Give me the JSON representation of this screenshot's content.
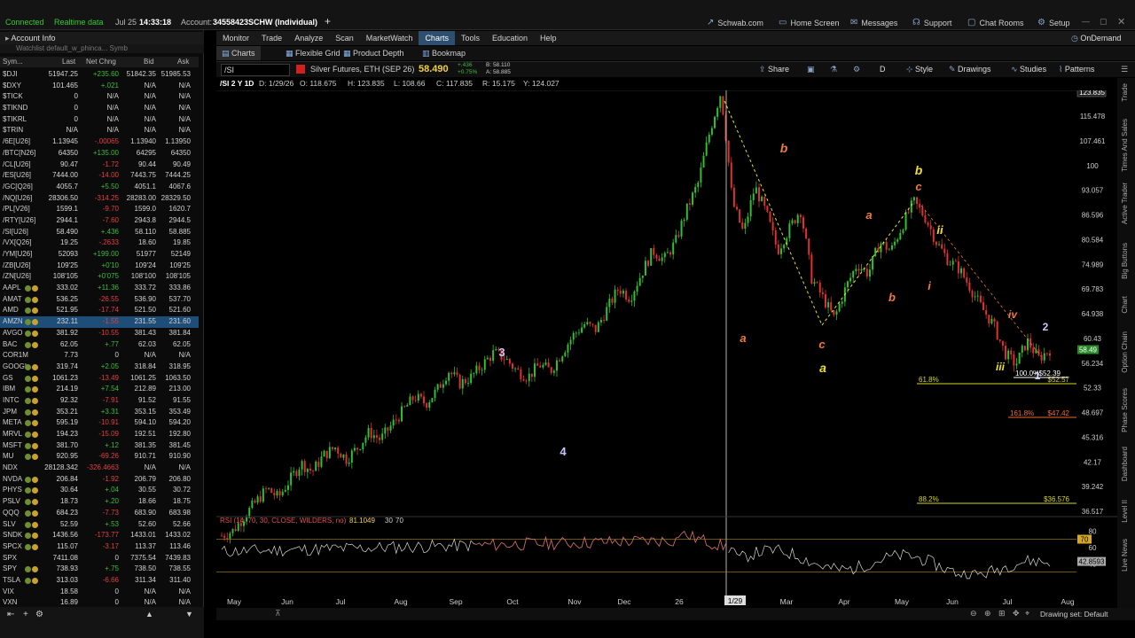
{
  "status": {
    "connected": "Connected",
    "realtime": "Realtime data",
    "date": "Jul 25",
    "time": "14:33:18",
    "account_label": "Account:",
    "account": "34558423SCHW (Individual)"
  },
  "toplinks": [
    "Schwab.com",
    "Home Screen",
    "Messages",
    "Support",
    "Chat Rooms",
    "Setup"
  ],
  "left": {
    "account_info": "Account Info",
    "watchlist_hint": "Watchlist   default_w_phinca...   Symb",
    "cols": [
      "Sym...",
      "Last",
      "Net Chng",
      "Bid",
      "Ask"
    ]
  },
  "watchlist": [
    {
      "sym": "$DJI",
      "last": "51947.25",
      "chg": "+235.60",
      "bid": "51842.35",
      "ask": "51985.53",
      "dir": "pos"
    },
    {
      "sym": "$DXY",
      "last": "101.465",
      "chg": "+.021",
      "bid": "N/A",
      "ask": "N/A",
      "dir": "pos"
    },
    {
      "sym": "$TICK",
      "last": "0",
      "chg": "N/A",
      "bid": "N/A",
      "ask": "N/A",
      "dir": "neu"
    },
    {
      "sym": "$TIKND",
      "last": "0",
      "chg": "N/A",
      "bid": "N/A",
      "ask": "N/A",
      "dir": "neu"
    },
    {
      "sym": "$TIKRL",
      "last": "0",
      "chg": "N/A",
      "bid": "N/A",
      "ask": "N/A",
      "dir": "neu"
    },
    {
      "sym": "$TRIN",
      "last": "N/A",
      "chg": "N/A",
      "bid": "N/A",
      "ask": "N/A",
      "dir": "neu"
    },
    {
      "sym": "/6E[U26]",
      "last": "1.13945",
      "chg": "-.00065",
      "bid": "1.13940",
      "ask": "1.13950",
      "dir": "neg"
    },
    {
      "sym": "/BTC[N26]",
      "last": "64350",
      "chg": "+135.00",
      "bid": "64295",
      "ask": "64350",
      "dir": "pos"
    },
    {
      "sym": "/CL[U26]",
      "last": "90.47",
      "chg": "-1.72",
      "bid": "90.44",
      "ask": "90.49",
      "dir": "neg"
    },
    {
      "sym": "/ES[U26]",
      "last": "7444.00",
      "chg": "-14.00",
      "bid": "7443.75",
      "ask": "7444.25",
      "dir": "neg"
    },
    {
      "sym": "/GC[Q26]",
      "last": "4055.7",
      "chg": "+5.50",
      "bid": "4051.1",
      "ask": "4067.6",
      "dir": "pos"
    },
    {
      "sym": "/NQ[U26]",
      "last": "28306.50",
      "chg": "-314.25",
      "bid": "28283.00",
      "ask": "28329.50",
      "dir": "neg"
    },
    {
      "sym": "/PL[V26]",
      "last": "1599.1",
      "chg": "-9.70",
      "bid": "1599.0",
      "ask": "1620.7",
      "dir": "neg"
    },
    {
      "sym": "/RTY[U26]",
      "last": "2944.1",
      "chg": "-7.60",
      "bid": "2943.8",
      "ask": "2944.5",
      "dir": "neg"
    },
    {
      "sym": "/SI[U26]",
      "last": "58.490",
      "chg": "+.436",
      "bid": "58.110",
      "ask": "58.885",
      "dir": "pos"
    },
    {
      "sym": "/VX[Q26]",
      "last": "19.25",
      "chg": "-.2633",
      "bid": "18.60",
      "ask": "19.85",
      "dir": "neg"
    },
    {
      "sym": "/YM[U26]",
      "last": "52093",
      "chg": "+199.00",
      "bid": "51977",
      "ask": "52149",
      "dir": "pos"
    },
    {
      "sym": "/ZB[U26]",
      "last": "109'25",
      "chg": "+0'10",
      "bid": "109'24",
      "ask": "109'25",
      "dir": "pos"
    },
    {
      "sym": "/ZN[U26]",
      "last": "108'105",
      "chg": "+0'075",
      "bid": "108'100",
      "ask": "108'105",
      "dir": "pos"
    },
    {
      "sym": "AAPL",
      "last": "333.02",
      "chg": "+11.36",
      "bid": "333.72",
      "ask": "333.86",
      "dir": "pos",
      "b": 1
    },
    {
      "sym": "AMAT",
      "last": "536.25",
      "chg": "-26.55",
      "bid": "536.90",
      "ask": "537.70",
      "dir": "neg",
      "b": 1
    },
    {
      "sym": "AMD",
      "last": "521.95",
      "chg": "-17.74",
      "bid": "521.50",
      "ask": "521.60",
      "dir": "neg",
      "b": 1
    },
    {
      "sym": "AMZN",
      "last": "232.11",
      "chg": "-1.55",
      "bid": "231.55",
      "ask": "231.60",
      "dir": "neg",
      "b": 1,
      "sel": 1
    },
    {
      "sym": "AVGO",
      "last": "381.92",
      "chg": "-10.55",
      "bid": "381.43",
      "ask": "381.84",
      "dir": "neg",
      "b": 1
    },
    {
      "sym": "BAC",
      "last": "62.05",
      "chg": "+.77",
      "bid": "62.03",
      "ask": "62.05",
      "dir": "pos",
      "b": 1
    },
    {
      "sym": "COR1M",
      "last": "7.73",
      "chg": "0",
      "bid": "N/A",
      "ask": "N/A",
      "dir": "neu"
    },
    {
      "sym": "GOOGL",
      "last": "319.74",
      "chg": "+2.05",
      "bid": "318.84",
      "ask": "318.95",
      "dir": "pos",
      "b": 1
    },
    {
      "sym": "GS",
      "last": "1061.23",
      "chg": "-13.49",
      "bid": "1061.25",
      "ask": "1063.50",
      "dir": "neg",
      "b": 1
    },
    {
      "sym": "IBM",
      "last": "214.19",
      "chg": "+7.54",
      "bid": "212.89",
      "ask": "213.00",
      "dir": "pos",
      "b": 1
    },
    {
      "sym": "INTC",
      "last": "92.32",
      "chg": "-7.91",
      "bid": "91.52",
      "ask": "91.55",
      "dir": "neg",
      "b": 1
    },
    {
      "sym": "JPM",
      "last": "353.21",
      "chg": "+3.31",
      "bid": "353.15",
      "ask": "353.49",
      "dir": "pos",
      "b": 1
    },
    {
      "sym": "META",
      "last": "595.19",
      "chg": "-10.91",
      "bid": "594.10",
      "ask": "594.20",
      "dir": "neg",
      "b": 1
    },
    {
      "sym": "MRVL",
      "last": "194.23",
      "chg": "-15.09",
      "bid": "192.51",
      "ask": "192.80",
      "dir": "neg",
      "b": 1
    },
    {
      "sym": "MSFT",
      "last": "381.70",
      "chg": "+.12",
      "bid": "381.35",
      "ask": "381.45",
      "dir": "pos",
      "b": 1
    },
    {
      "sym": "MU",
      "last": "920.95",
      "chg": "-69.26",
      "bid": "910.71",
      "ask": "910.90",
      "dir": "neg",
      "b": 1
    },
    {
      "sym": "NDX",
      "last": "28128.342",
      "chg": "-326.4663",
      "bid": "N/A",
      "ask": "N/A",
      "dir": "neg"
    },
    {
      "sym": "NVDA",
      "last": "206.84",
      "chg": "-1.92",
      "bid": "206.79",
      "ask": "206.80",
      "dir": "neg",
      "b": 1
    },
    {
      "sym": "PHYS",
      "last": "30.64",
      "chg": "+.04",
      "bid": "30.55",
      "ask": "30.72",
      "dir": "pos",
      "b": 1
    },
    {
      "sym": "PSLV",
      "last": "18.73",
      "chg": "+.20",
      "bid": "18.66",
      "ask": "18.75",
      "dir": "pos",
      "b": 1
    },
    {
      "sym": "QQQ",
      "last": "684.23",
      "chg": "-7.73",
      "bid": "683.90",
      "ask": "683.98",
      "dir": "neg",
      "b": 1
    },
    {
      "sym": "SLV",
      "last": "52.59",
      "chg": "+.53",
      "bid": "52.60",
      "ask": "52.66",
      "dir": "pos",
      "b": 1
    },
    {
      "sym": "SNDK",
      "last": "1436.56",
      "chg": "-173.77",
      "bid": "1433.01",
      "ask": "1433.02",
      "dir": "neg",
      "b": 1
    },
    {
      "sym": "SPCX",
      "last": "115.07",
      "chg": "-3.17",
      "bid": "113.37",
      "ask": "113.46",
      "dir": "neg",
      "b": 1
    },
    {
      "sym": "SPX",
      "last": "7411.08",
      "chg": "0",
      "bid": "7375.54",
      "ask": "7439.83",
      "dir": "neu"
    },
    {
      "sym": "SPY",
      "last": "738.93",
      "chg": "+.75",
      "bid": "738.50",
      "ask": "738.55",
      "dir": "pos",
      "b": 1
    },
    {
      "sym": "TSLA",
      "last": "313.03",
      "chg": "-6.66",
      "bid": "311.34",
      "ask": "311.40",
      "dir": "neg",
      "b": 1
    },
    {
      "sym": "VIX",
      "last": "18.58",
      "chg": "0",
      "bid": "N/A",
      "ask": "N/A",
      "dir": "neu"
    },
    {
      "sym": "VXN",
      "last": "16.89",
      "chg": "0",
      "bid": "N/A",
      "ask": "N/A",
      "dir": "neu"
    }
  ],
  "nav": [
    "Monitor",
    "Trade",
    "Analyze",
    "Scan",
    "MarketWatch",
    "Charts",
    "Tools",
    "Education",
    "Help"
  ],
  "ondemand": "OnDemand",
  "subnav": {
    "charts": "Charts",
    "flex": "Flexible Grid",
    "depth": "Product Depth",
    "bookmap": "Bookmap"
  },
  "charthead": {
    "symbol": "/SI",
    "desc": "Silver Futures, ETH (SEP 26)",
    "price": "58.490",
    "b": "B: 58.110",
    "a": "A: 58.885",
    "chg": "+.436",
    "pct": "+0.75%",
    "tools": [
      "Share",
      "D",
      "Style",
      "Drawings",
      "Studies",
      "Patterns"
    ]
  },
  "chartinfo": {
    "label": "/SI 2 Y 1D",
    "date": "D: 1/29/26",
    "o": "O: 118.675",
    "h": "H: 123.835",
    "l": "L: 108.66",
    "c": "C: 117.835",
    "r": "R: 15.175",
    "y": "Y: 124.027"
  },
  "rsi_label": "RSI (14, 70, 30, CLOSE, WILDERS, no)",
  "rsi_value": "81.1049",
  "rsi_levels": [
    "30",
    "70"
  ],
  "drawing_set": "Drawing set: Default",
  "side_tabs": [
    "Trade",
    "Times And Sales",
    "Active Trader",
    "Big Buttons",
    "Chart",
    "Option Chain",
    "Phase Scores",
    "Dashboard",
    "Level II",
    "Live News"
  ],
  "chart_data": {
    "type": "candlestick",
    "symbol": "/SI",
    "x_ticks": [
      "May",
      "Jun",
      "Jul",
      "Aug",
      "Sep",
      "Oct",
      "Nov",
      "Dec",
      "26",
      "1/29",
      "Mar",
      "Apr",
      "May",
      "Jun",
      "Jul",
      "Aug"
    ],
    "y_ticks": [
      123.835,
      115.478,
      107.461,
      100,
      93.057,
      86.596,
      80.584,
      74.989,
      69.783,
      64.938,
      60.43,
      56.234,
      52.33,
      48.697,
      45.316,
      42.17,
      39.242,
      36.517
    ],
    "last_price": 58.49,
    "close_path": [
      34,
      34.5,
      36,
      37.5,
      39,
      38,
      40,
      42,
      41,
      43,
      44,
      42.5,
      44,
      46,
      45,
      47,
      49,
      51,
      50,
      52,
      55,
      53,
      54,
      56,
      58,
      57,
      55,
      54,
      56,
      55,
      58,
      61,
      63,
      62,
      66,
      70,
      68,
      73,
      78,
      76,
      80,
      88,
      95,
      110,
      123.8,
      90,
      82,
      94,
      87,
      78,
      83,
      88,
      72,
      68,
      64,
      70,
      75,
      73,
      80,
      78,
      84,
      90,
      86,
      80,
      76,
      74,
      70,
      66,
      63,
      58,
      56,
      60,
      57,
      58.5
    ],
    "wave_labels": [
      {
        "t": "3",
        "c": "#c7c7ff"
      },
      {
        "t": "4",
        "c": "#c7c7ff"
      },
      {
        "t": "a",
        "c": "#f07a3a"
      },
      {
        "t": "b",
        "c": "#f07a3a"
      },
      {
        "t": "c",
        "c": "#f07a3a"
      },
      {
        "t": "a",
        "c": "#f0e020"
      },
      {
        "t": "a",
        "c": "#f07a3a"
      },
      {
        "t": "b",
        "c": "#f07a3a"
      },
      {
        "t": "b",
        "c": "#f0e020"
      },
      {
        "t": "c",
        "c": "#f07a3a"
      },
      {
        "t": "i",
        "c": "#f07a3a"
      },
      {
        "t": "ii",
        "c": "#f0e020"
      },
      {
        "t": "iii",
        "c": "#f0e020"
      },
      {
        "t": "iv",
        "c": "#f07a3a"
      },
      {
        "t": "2",
        "c": "#c7c7ff"
      },
      {
        "t": "1",
        "c": "#c7c7ff"
      }
    ],
    "fib_levels": [
      {
        "pct": "61.8%",
        "price": "$52.57",
        "color": "#d6d620"
      },
      {
        "pct": "88.2%",
        "price": "$36.576",
        "color": "#d6d620"
      },
      {
        "pct": "161.8%",
        "price": "$47.42",
        "color": "#f06a2a"
      },
      {
        "pct": "100.0%",
        "price": "$52.39",
        "color": "#ffffff"
      }
    ],
    "rsi_axis": [
      "80",
      "60",
      "40"
    ],
    "rsi_last": "42.8593",
    "rsi_top": "70"
  }
}
